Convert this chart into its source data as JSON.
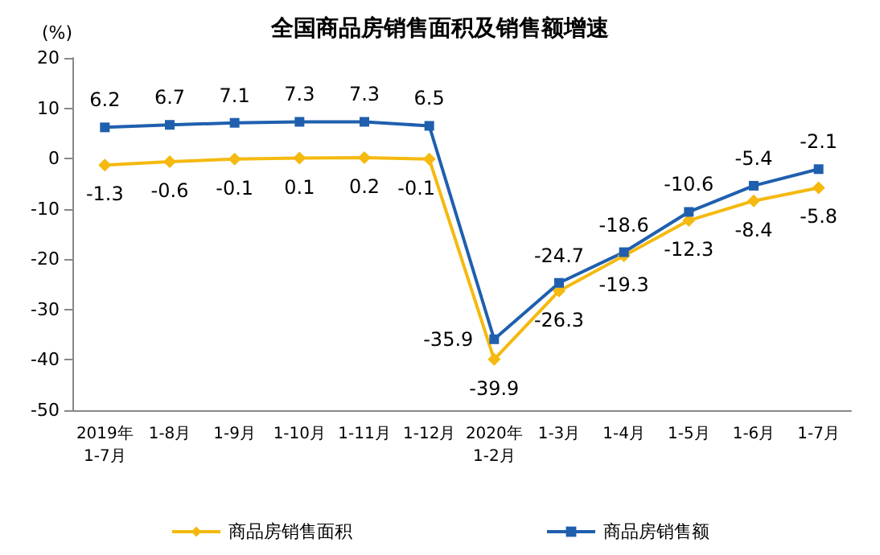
{
  "chart_data": {
    "type": "line",
    "title": "全国商品房销售面积及销售额增速",
    "ylabel": "(%)",
    "categories": [
      "2019年\n1-7月",
      "1-8月",
      "1-9月",
      "1-10月",
      "1-11月",
      "1-12月",
      "2020年\n1-2月",
      "1-3月",
      "1-4月",
      "1-5月",
      "1-6月",
      "1-7月"
    ],
    "series": [
      {
        "name": "商品房销售面积",
        "color": "#f5b90f",
        "marker": "diamond",
        "values": [
          -1.3,
          -0.6,
          -0.1,
          0.1,
          0.2,
          -0.1,
          -39.9,
          -26.3,
          -19.3,
          -12.3,
          -8.4,
          -5.8
        ]
      },
      {
        "name": "商品房销售额",
        "color": "#1f5fae",
        "marker": "square",
        "values": [
          6.2,
          6.7,
          7.1,
          7.3,
          7.3,
          6.5,
          -35.9,
          -24.7,
          -18.6,
          -10.6,
          -5.4,
          -2.1
        ]
      }
    ],
    "ylim": [
      -50,
      20
    ],
    "yticks": [
      -50,
      -40,
      -30,
      -20,
      -10,
      0,
      10,
      20
    ],
    "grid": false,
    "legend": "bottom",
    "data_labels": true,
    "line_style": "solid"
  }
}
